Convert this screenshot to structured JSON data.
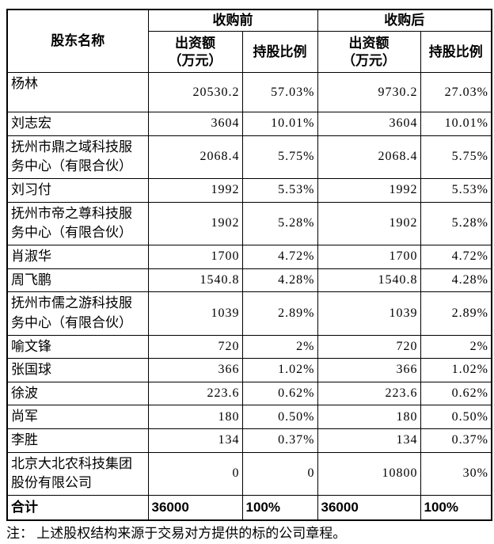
{
  "page": {
    "background_color": "#ffffff",
    "border_color": "#000000",
    "text_color": "#000000"
  },
  "table": {
    "header": {
      "shareholder": "股东名称",
      "before": "收购前",
      "after": "收购后",
      "contribution_line1": "出资额",
      "contribution_line2": "（万元）",
      "ratio": "持股比例"
    },
    "rows": [
      {
        "name": "杨林",
        "pre_amount": "20530.2",
        "pre_ratio": "57.03%",
        "post_amount": "9730.2",
        "post_ratio": "27.03%"
      },
      {
        "name": "刘志宏",
        "pre_amount": "3604",
        "pre_ratio": "10.01%",
        "post_amount": "3604",
        "post_ratio": "10.01%"
      },
      {
        "name": "抚州市鼎之域科技服务中心（有限合伙）",
        "pre_amount": "2068.4",
        "pre_ratio": "5.75%",
        "post_amount": "2068.4",
        "post_ratio": "5.75%"
      },
      {
        "name": "刘习付",
        "pre_amount": "1992",
        "pre_ratio": "5.53%",
        "post_amount": "1992",
        "post_ratio": "5.53%"
      },
      {
        "name": "抚州市帝之尊科技服务中心（有限合伙）",
        "pre_amount": "1902",
        "pre_ratio": "5.28%",
        "post_amount": "1902",
        "post_ratio": "5.28%"
      },
      {
        "name": "肖淑华",
        "pre_amount": "1700",
        "pre_ratio": "4.72%",
        "post_amount": "1700",
        "post_ratio": "4.72%"
      },
      {
        "name": "周飞鹏",
        "pre_amount": "1540.8",
        "pre_ratio": "4.28%",
        "post_amount": "1540.8",
        "post_ratio": "4.28%"
      },
      {
        "name": "抚州市儒之游科技服务中心（有限合伙）",
        "pre_amount": "1039",
        "pre_ratio": "2.89%",
        "post_amount": "1039",
        "post_ratio": "2.89%"
      },
      {
        "name": "喻文锋",
        "pre_amount": "720",
        "pre_ratio": "2%",
        "post_amount": "720",
        "post_ratio": "2%"
      },
      {
        "name": "张国球",
        "pre_amount": "366",
        "pre_ratio": "1.02%",
        "post_amount": "366",
        "post_ratio": "1.02%"
      },
      {
        "name": "徐波",
        "pre_amount": "223.6",
        "pre_ratio": "0.62%",
        "post_amount": "223.6",
        "post_ratio": "0.62%"
      },
      {
        "name": "尚军",
        "pre_amount": "180",
        "pre_ratio": "0.50%",
        "post_amount": "180",
        "post_ratio": "0.50%"
      },
      {
        "name": "李胜",
        "pre_amount": "134",
        "pre_ratio": "0.37%",
        "post_amount": "134",
        "post_ratio": "0.37%"
      },
      {
        "name": "北京大北农科技集团股份有限公司",
        "pre_amount": "0",
        "pre_ratio": "0",
        "post_amount": "10800",
        "post_ratio": "30%"
      }
    ],
    "total_row": {
      "name": "合计",
      "pre_amount": "36000",
      "pre_ratio": "100%",
      "post_amount": "36000",
      "post_ratio": "100%"
    }
  },
  "note": "注： 上述股权结构来源于交易对方提供的标的公司章程。"
}
